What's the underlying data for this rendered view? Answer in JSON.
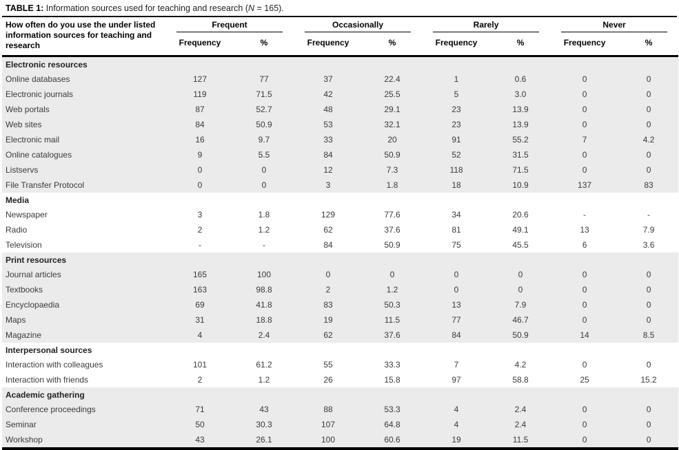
{
  "title": {
    "label": "TABLE 1:",
    "text": " Information sources used for teaching and research (",
    "n_symbol": "N",
    "suffix": " = 165)."
  },
  "header": {
    "question": "How often do you use the under listed information sources for teaching and research",
    "groups": [
      "Frequent",
      "Occasionally",
      "Rarely",
      "Never"
    ],
    "sub_frequency": "Frequency",
    "sub_percent": "%"
  },
  "sections": [
    {
      "name": "Electronic resources",
      "shaded": true,
      "rows": [
        {
          "label": "Online databases",
          "values": [
            "127",
            "77",
            "37",
            "22.4",
            "1",
            "0.6",
            "0",
            "0"
          ]
        },
        {
          "label": "Electronic journals",
          "values": [
            "119",
            "71.5",
            "42",
            "25.5",
            "5",
            "3.0",
            "0",
            "0"
          ]
        },
        {
          "label": "Web portals",
          "values": [
            "87",
            "52.7",
            "48",
            "29.1",
            "23",
            "13.9",
            "0",
            "0"
          ]
        },
        {
          "label": "Web sites",
          "values": [
            "84",
            "50.9",
            "53",
            "32.1",
            "23",
            "13.9",
            "0",
            "0"
          ]
        },
        {
          "label": "Electronic mail",
          "values": [
            "16",
            "9.7",
            "33",
            "20",
            "91",
            "55.2",
            "7",
            "4.2"
          ]
        },
        {
          "label": "Online catalogues",
          "values": [
            "9",
            "5.5",
            "84",
            "50.9",
            "52",
            "31.5",
            "0",
            "0"
          ]
        },
        {
          "label": "Listservs",
          "values": [
            "0",
            "0",
            "12",
            "7.3",
            "118",
            "71.5",
            "0",
            "0"
          ]
        },
        {
          "label": "File Transfer Protocol",
          "values": [
            "0",
            "0",
            "3",
            "1.8",
            "18",
            "10.9",
            "137",
            "83"
          ]
        }
      ]
    },
    {
      "name": "Media",
      "shaded": false,
      "rows": [
        {
          "label": "Newspaper",
          "values": [
            "3",
            "1.8",
            "129",
            "77.6",
            "34",
            "20.6",
            "-",
            "-"
          ]
        },
        {
          "label": "Radio",
          "values": [
            "2",
            "1.2",
            "62",
            "37.6",
            "81",
            "49.1",
            "13",
            "7.9"
          ]
        },
        {
          "label": "Television",
          "values": [
            "-",
            "-",
            "84",
            "50.9",
            "75",
            "45.5",
            "6",
            "3.6"
          ]
        }
      ]
    },
    {
      "name": "Print resources",
      "shaded": true,
      "rows": [
        {
          "label": "Journal articles",
          "values": [
            "165",
            "100",
            "0",
            "0",
            "0",
            "0",
            "0",
            "0"
          ]
        },
        {
          "label": "Textbooks",
          "values": [
            "163",
            "98.8",
            "2",
            "1.2",
            "0",
            "0",
            "0",
            "0"
          ]
        },
        {
          "label": "Encyclopaedia",
          "values": [
            "69",
            "41.8",
            "83",
            "50.3",
            "13",
            "7.9",
            "0",
            "0"
          ]
        },
        {
          "label": "Maps",
          "values": [
            "31",
            "18.8",
            "19",
            "11.5",
            "77",
            "46.7",
            "0",
            "0"
          ]
        },
        {
          "label": "Magazine",
          "values": [
            "4",
            "2.4",
            "62",
            "37.6",
            "84",
            "50.9",
            "14",
            "8.5"
          ]
        }
      ]
    },
    {
      "name": "Interpersonal sources",
      "shaded": false,
      "rows": [
        {
          "label": "Interaction with colleagues",
          "values": [
            "101",
            "61.2",
            "55",
            "33.3",
            "7",
            "4.2",
            "0",
            "0"
          ]
        },
        {
          "label": "Interaction with friends",
          "values": [
            "2",
            "1.2",
            "26",
            "15.8",
            "97",
            "58.8",
            "25",
            "15.2"
          ]
        }
      ]
    },
    {
      "name": "Academic gathering",
      "shaded": true,
      "rows": [
        {
          "label": "Conference proceedings",
          "values": [
            "71",
            "43",
            "88",
            "53.3",
            "4",
            "2.4",
            "0",
            "0"
          ]
        },
        {
          "label": "Seminar",
          "values": [
            "50",
            "30.3",
            "107",
            "64.8",
            "4",
            "2.4",
            "0",
            "0"
          ]
        },
        {
          "label": "Workshop",
          "values": [
            "43",
            "26.1",
            "100",
            "60.6",
            "19",
            "11.5",
            "0",
            "0"
          ]
        }
      ]
    }
  ]
}
